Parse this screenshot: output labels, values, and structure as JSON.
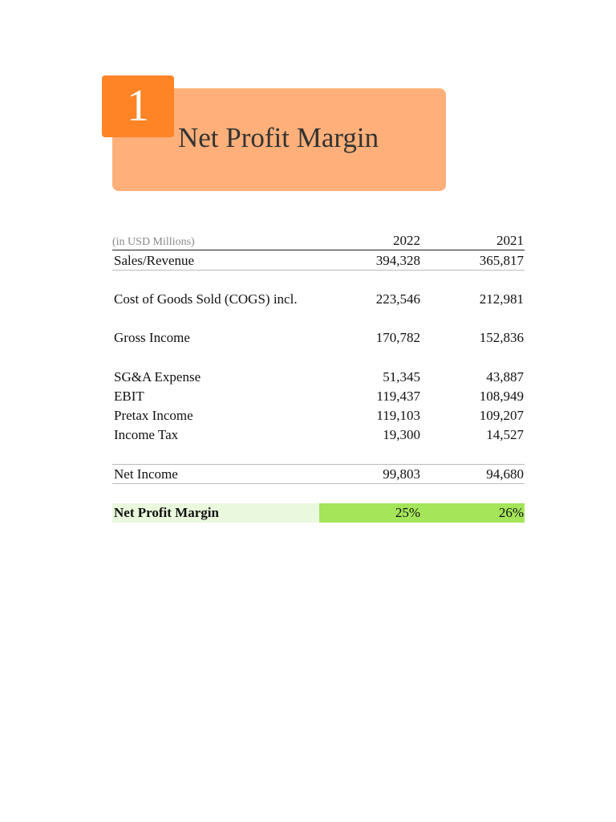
{
  "header": {
    "number": "1",
    "title": "Net Profit Margin"
  },
  "table": {
    "unit_label": "(in USD Millions)",
    "columns": [
      "2022",
      "2021"
    ],
    "rows": [
      {
        "label": "Sales/Revenue",
        "values": [
          "394,328",
          "365,817"
        ]
      },
      {
        "label": "Cost of Goods Sold (COGS) incl.",
        "values": [
          "223,546",
          "212,981"
        ]
      },
      {
        "label": "Gross Income",
        "values": [
          "170,782",
          "152,836"
        ]
      },
      {
        "label": "SG&A Expense",
        "values": [
          "51,345",
          "43,887"
        ]
      },
      {
        "label": "EBIT",
        "values": [
          "119,437",
          "108,949"
        ]
      },
      {
        "label": "Pretax Income",
        "values": [
          "119,103",
          "109,207"
        ]
      },
      {
        "label": "Income Tax",
        "values": [
          "19,300",
          "14,527"
        ]
      },
      {
        "label": "Net Income",
        "values": [
          "99,803",
          "94,680"
        ]
      },
      {
        "label": "Net Profit Margin",
        "values": [
          "25%",
          "26%"
        ]
      }
    ]
  }
}
